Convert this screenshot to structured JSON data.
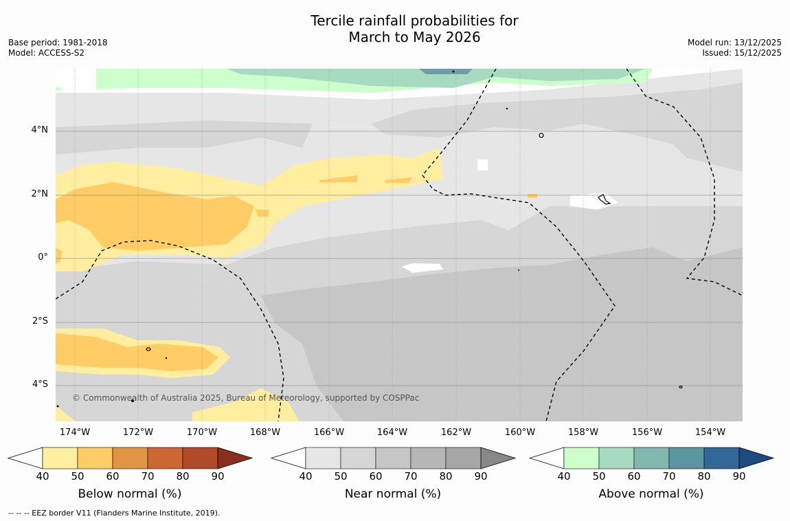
{
  "title": {
    "line1": "Tercile rainfall probabilities for",
    "line2": "March to May 2026"
  },
  "meta_left": {
    "base_period": "Base period: 1981-2018",
    "model": "Model: ACCESS-S2"
  },
  "meta_right": {
    "model_run": "Model run: 13/12/2025",
    "issued": "Issued: 15/12/2025"
  },
  "map": {
    "lon_ticks": [
      "174°W",
      "172°W",
      "170°W",
      "168°W",
      "166°W",
      "164°W",
      "162°W",
      "160°W",
      "158°W",
      "156°W",
      "154°W"
    ],
    "lat_ticks": [
      "4°N",
      "2°N",
      "0°",
      "2°S",
      "4°S"
    ],
    "copyright": "© Commonwealth of Australia 2025, Bureau of Meteorology, supported by COSPPac"
  },
  "colorbars": [
    {
      "title": "Below normal (%)",
      "ticks": [
        "40",
        "50",
        "60",
        "70",
        "80",
        "90"
      ],
      "colors": [
        "#ffeea0",
        "#ffcc66",
        "#e09444",
        "#cc6633",
        "#b04a28",
        "#8c2e1e"
      ]
    },
    {
      "title": "Near normal (%)",
      "ticks": [
        "40",
        "50",
        "60",
        "70",
        "80",
        "90"
      ],
      "colors": [
        "#e6e6e6",
        "#d6d6d6",
        "#c6c6c6",
        "#b6b6b6",
        "#a6a6a6",
        "#888888"
      ]
    },
    {
      "title": "Above normal (%)",
      "ticks": [
        "40",
        "50",
        "60",
        "70",
        "80",
        "90"
      ],
      "colors": [
        "#ccffcc",
        "#a6dbc2",
        "#80b8b0",
        "#5a95a0",
        "#336699",
        "#1a4c80"
      ]
    }
  ],
  "footnote": "--  --  -- EEZ border V11 (Flanders Marine Institute, 2019)."
}
